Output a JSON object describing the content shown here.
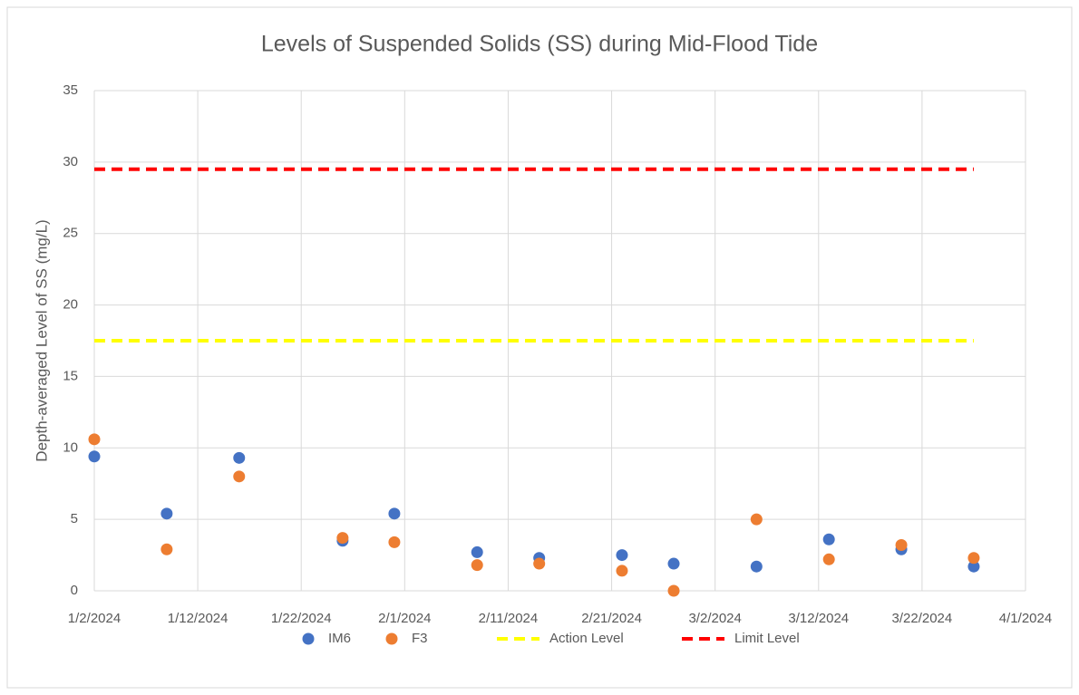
{
  "chart_data": {
    "type": "scatter",
    "title": "Levels of Suspended Solids (SS) during Mid-Flood Tide",
    "y_label": "Depth-averaged Level of  SS (mg/L)",
    "xlim": [
      "1/2/2024",
      "4/1/2024"
    ],
    "xticks": [
      "1/2/2024",
      "1/12/2024",
      "1/22/2024",
      "2/1/2024",
      "2/11/2024",
      "2/21/2024",
      "3/2/2024",
      "3/12/2024",
      "3/22/2024",
      "4/1/2024"
    ],
    "ylim": [
      0,
      35
    ],
    "yticks": [
      0,
      5,
      10,
      15,
      20,
      25,
      30,
      35
    ],
    "grid": true,
    "legend": "bottom",
    "series": [
      {
        "name": "IM6",
        "color": "#4472c4",
        "style": "marker",
        "x": [
          "1/2/2024",
          "1/9/2024",
          "1/16/2024",
          "1/26/2024",
          "1/31/2024",
          "2/8/2024",
          "2/14/2024",
          "2/22/2024",
          "2/27/2024",
          "3/6/2024",
          "3/13/2024",
          "3/20/2024",
          "3/27/2024"
        ],
        "values": [
          9.4,
          5.4,
          9.3,
          3.5,
          5.4,
          2.7,
          2.3,
          2.5,
          1.9,
          1.7,
          3.6,
          2.9,
          1.7
        ]
      },
      {
        "name": "F3",
        "color": "#ed7d31",
        "style": "marker",
        "x": [
          "1/2/2024",
          "1/9/2024",
          "1/16/2024",
          "1/26/2024",
          "1/31/2024",
          "2/8/2024",
          "2/14/2024",
          "2/22/2024",
          "2/27/2024",
          "3/6/2024",
          "3/13/2024",
          "3/20/2024",
          "3/27/2024"
        ],
        "values": [
          10.6,
          2.9,
          8.0,
          3.7,
          3.4,
          1.8,
          1.9,
          1.4,
          0,
          5.0,
          2.2,
          3.2,
          2.3
        ]
      },
      {
        "name": "Action Level",
        "color": "#ffff00",
        "style": "dashed",
        "x": [
          "1/2/2024",
          "3/27/2024"
        ],
        "values": [
          17.5,
          17.5
        ]
      },
      {
        "name": "Limit Level",
        "color": "#ff0000",
        "style": "dashed",
        "x": [
          "1/2/2024",
          "3/27/2024"
        ],
        "values": [
          29.5,
          29.5
        ]
      }
    ]
  }
}
